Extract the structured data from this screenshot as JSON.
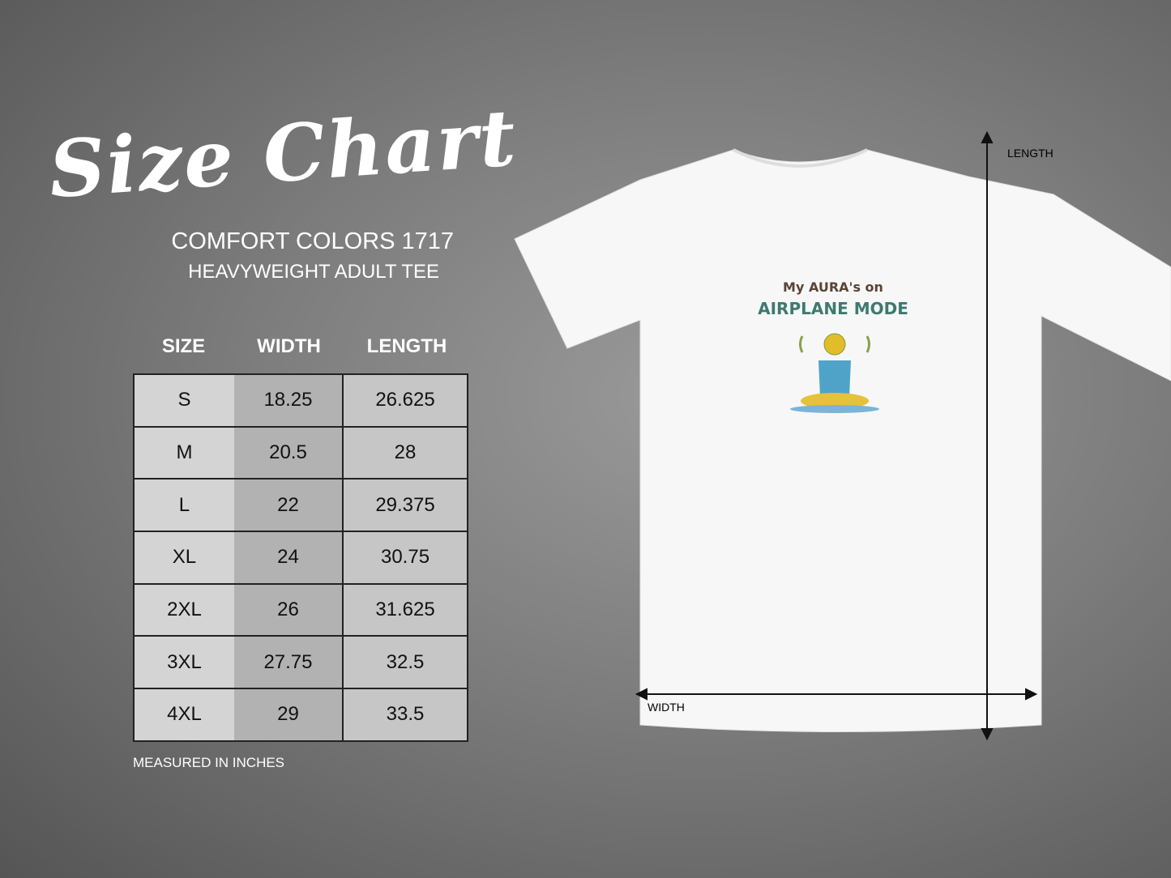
{
  "title": "Size Chart",
  "subtitle": "COMFORT COLORS 1717",
  "subtitle2": "HEAVYWEIGHT ADULT TEE",
  "table": {
    "headers": [
      "SIZE",
      "WIDTH",
      "LENGTH"
    ],
    "rows": [
      [
        "S",
        "18.25",
        "26.625"
      ],
      [
        "M",
        "20.5",
        "28"
      ],
      [
        "L",
        "22",
        "29.375"
      ],
      [
        "XL",
        "24",
        "30.75"
      ],
      [
        "2XL",
        "26",
        "31.625"
      ],
      [
        "3XL",
        "27.75",
        "32.5"
      ],
      [
        "4XL",
        "29",
        "33.5"
      ]
    ]
  },
  "note": "MEASURED IN INCHES",
  "shirt": {
    "width_label": "WIDTH",
    "length_label": "LENGTH",
    "print_line1": "My AURA's on",
    "print_line2": "AIRPLANE MODE"
  }
}
